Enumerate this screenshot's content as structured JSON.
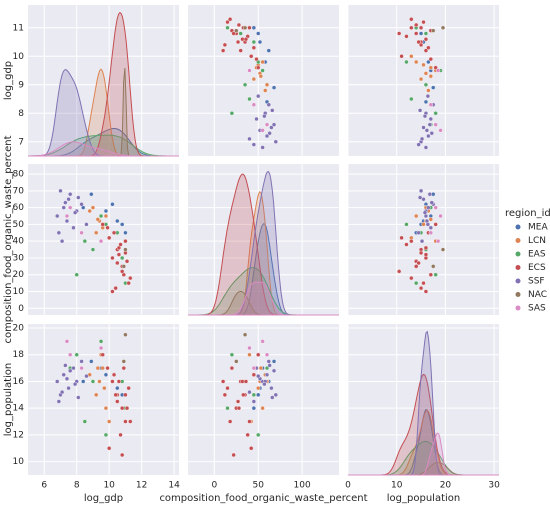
{
  "chart_data": {
    "type": "pairplot",
    "legend_title": "region_id",
    "variables": [
      {
        "name": "log_gdp",
        "xlim": [
          5,
          14.3
        ],
        "xticks": [
          6,
          8,
          10,
          12,
          14
        ],
        "ylim": [
          6.5,
          11.8
        ],
        "yticks": [
          7,
          8,
          9,
          10,
          11
        ]
      },
      {
        "name": "composition_food_organic_waste_percent",
        "xlim": [
          -30,
          142
        ],
        "xticks": [
          0,
          50,
          100
        ],
        "ylim": [
          -4,
          86
        ],
        "yticks": [
          0,
          10,
          20,
          30,
          40,
          50,
          60,
          70,
          80
        ]
      },
      {
        "name": "log_population",
        "xlim": [
          0,
          31
        ],
        "xticks": [
          0,
          10,
          20,
          30
        ],
        "ylim": [
          9,
          20.3
        ],
        "yticks": [
          10,
          12,
          14,
          16,
          18,
          20
        ]
      }
    ],
    "series": [
      {
        "name": "MEA",
        "color": "#4c72b0",
        "values": [
          [
            9.5,
            10.2,
            10.8,
            8.9,
            11.0,
            9.8,
            8.4,
            10.5
          ],
          [
            55,
            62,
            50,
            68,
            45,
            58,
            60,
            52
          ],
          [
            17,
            16,
            15,
            17.5,
            14,
            16.5,
            16,
            15.5
          ]
        ]
      },
      {
        "name": "LCN",
        "color": "#dd8452",
        "values": [
          [
            9.2,
            9.4,
            9.6,
            9.8,
            9.0,
            9.5,
            9.7,
            8.8,
            10.0,
            9.3
          ],
          [
            45,
            52,
            48,
            55,
            60,
            40,
            50,
            58,
            42,
            53
          ],
          [
            15,
            16,
            17,
            14,
            16,
            18,
            15.5,
            16.5,
            13,
            17
          ]
        ]
      },
      {
        "name": "EAS",
        "color": "#55a868",
        "values": [
          [
            8.0,
            9.0,
            10.5,
            11.0,
            9.5,
            7.6,
            10.8,
            8.5,
            9.8
          ],
          [
            20,
            35,
            45,
            15,
            55,
            60,
            30,
            40,
            50
          ],
          [
            18,
            16,
            15,
            14,
            19,
            17,
            16,
            13,
            12
          ]
        ]
      },
      {
        "name": "ECS",
        "color": "#c44e52",
        "values": [
          [
            10.2,
            10.5,
            10.8,
            11.0,
            11.2,
            10.6,
            10.9,
            10.3,
            10.7,
            11.1,
            10.4,
            10.0,
            11.3,
            10.6,
            9.9,
            10.8,
            11.0,
            10.5,
            10.2,
            9.6
          ],
          [
            30,
            35,
            25,
            40,
            15,
            32,
            20,
            45,
            38,
            28,
            12,
            42,
            18,
            36,
            48,
            22,
            33,
            27,
            10,
            50
          ],
          [
            16,
            15,
            14,
            13,
            15.5,
            16,
            17,
            16.5,
            12,
            14,
            15,
            11,
            13,
            16,
            17,
            10.5,
            15,
            14.5,
            16,
            18
          ]
        ]
      },
      {
        "name": "SSF",
        "color": "#8172b3",
        "values": [
          [
            6.8,
            7.2,
            7.5,
            7.8,
            8.0,
            7.0,
            7.4,
            8.3,
            6.9,
            7.6,
            7.9,
            8.6,
            7.3,
            7.1,
            8.1
          ],
          [
            55,
            60,
            65,
            48,
            58,
            70,
            52,
            62,
            45,
            68,
            57,
            50,
            63,
            40,
            66
          ],
          [
            16,
            16.5,
            15.5,
            17,
            16,
            15,
            16.2,
            17.5,
            14.5,
            16.8,
            15.8,
            16.4,
            17.2,
            15.2,
            14.8
          ]
        ]
      },
      {
        "name": "NAC",
        "color": "#937860",
        "values": [
          [
            10.9,
            11.0
          ],
          [
            25,
            35
          ],
          [
            17.5,
            19.5
          ]
        ]
      },
      {
        "name": "SAS",
        "color": "#da8bc3",
        "values": [
          [
            7.4,
            7.6,
            8.3,
            9.5
          ],
          [
            55,
            60,
            45,
            40
          ],
          [
            19,
            18,
            17,
            18.5
          ]
        ]
      }
    ]
  }
}
